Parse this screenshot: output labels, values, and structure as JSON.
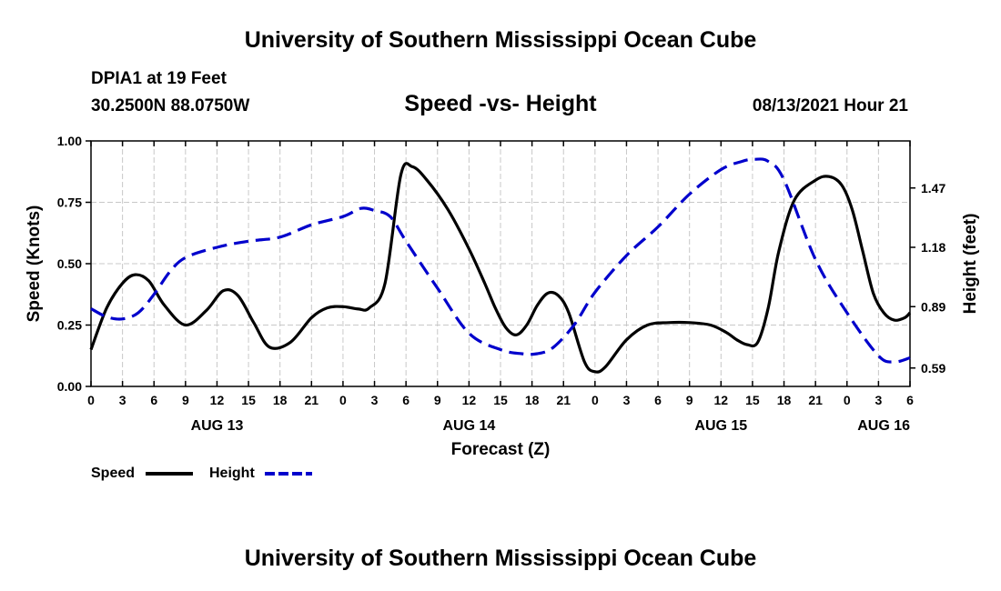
{
  "header": {
    "title": "University of Southern Mississippi Ocean Cube",
    "station": "DPIA1 at 19 Feet",
    "coords": "30.2500N  88.0750W",
    "chart_title": "Speed -vs- Height",
    "datetime": "08/13/2021 Hour 21"
  },
  "footer": {
    "title": "University of Southern Mississippi Ocean Cube"
  },
  "colors": {
    "speed": "#000000",
    "height": "#0000cc",
    "grid": "#c8c8c8"
  },
  "chart_data": {
    "type": "line",
    "title": "Speed -vs- Height",
    "xlabel": "Forecast (Z)",
    "ylabel": "Speed (Knots)",
    "y2label": "Height (feet)",
    "xlim": [
      0,
      78
    ],
    "ylim": [
      0,
      1.0
    ],
    "y2lim": [
      0.5,
      1.7
    ],
    "grid": true,
    "legend_position": "bottom-left",
    "x_ticks": [
      {
        "x": 0,
        "label": "0"
      },
      {
        "x": 3,
        "label": "3"
      },
      {
        "x": 6,
        "label": "6"
      },
      {
        "x": 9,
        "label": "9"
      },
      {
        "x": 12,
        "label": "12"
      },
      {
        "x": 15,
        "label": "15"
      },
      {
        "x": 18,
        "label": "18"
      },
      {
        "x": 21,
        "label": "21"
      },
      {
        "x": 24,
        "label": "0"
      },
      {
        "x": 27,
        "label": "3"
      },
      {
        "x": 30,
        "label": "6"
      },
      {
        "x": 33,
        "label": "9"
      },
      {
        "x": 36,
        "label": "12"
      },
      {
        "x": 39,
        "label": "15"
      },
      {
        "x": 42,
        "label": "18"
      },
      {
        "x": 45,
        "label": "21"
      },
      {
        "x": 48,
        "label": "0"
      },
      {
        "x": 51,
        "label": "3"
      },
      {
        "x": 54,
        "label": "6"
      },
      {
        "x": 57,
        "label": "9"
      },
      {
        "x": 60,
        "label": "12"
      },
      {
        "x": 63,
        "label": "15"
      },
      {
        "x": 66,
        "label": "18"
      },
      {
        "x": 69,
        "label": "21"
      },
      {
        "x": 72,
        "label": "0"
      },
      {
        "x": 75,
        "label": "3"
      },
      {
        "x": 78,
        "label": "6"
      }
    ],
    "day_labels": [
      {
        "x": 12,
        "label": "AUG 13"
      },
      {
        "x": 36,
        "label": "AUG 14"
      },
      {
        "x": 60,
        "label": "AUG 15"
      },
      {
        "x": 75.5,
        "label": "AUG 16"
      }
    ],
    "y_ticks": [
      {
        "v": 0.0,
        "label": "0.00"
      },
      {
        "v": 0.25,
        "label": "0.25"
      },
      {
        "v": 0.5,
        "label": "0.50"
      },
      {
        "v": 0.75,
        "label": "0.75"
      },
      {
        "v": 1.0,
        "label": "1.00"
      }
    ],
    "y2_ticks": [
      {
        "v": 0.59,
        "label": "0.59"
      },
      {
        "v": 0.89,
        "label": "0.89"
      },
      {
        "v": 1.18,
        "label": "1.18"
      },
      {
        "v": 1.47,
        "label": "1.47"
      }
    ],
    "series": [
      {
        "name": "Speed",
        "axis": "left",
        "color": "#000000",
        "dash": "solid",
        "x": [
          0,
          1.5,
          3,
          4.2,
          5.5,
          7,
          9,
          11,
          12.6,
          14,
          15.5,
          17,
          19,
          21,
          22.5,
          24,
          25.5,
          26.5,
          28,
          29.5,
          30.6,
          32,
          34,
          36,
          37.5,
          38.5,
          39.5,
          40.5,
          41.5,
          42.5,
          43.5,
          44.5,
          45.5,
          47,
          48,
          49,
          51,
          53,
          55,
          57,
          59,
          60.5,
          61.5,
          62.5,
          63.5,
          64.5,
          65.5,
          67,
          69,
          70.3,
          71.5,
          72.5,
          73.5,
          74.5,
          75.5,
          76.5,
          77.5,
          78
        ],
        "values": [
          0.15,
          0.32,
          0.42,
          0.455,
          0.43,
          0.33,
          0.25,
          0.31,
          0.39,
          0.37,
          0.26,
          0.16,
          0.18,
          0.28,
          0.32,
          0.325,
          0.315,
          0.32,
          0.42,
          0.86,
          0.895,
          0.84,
          0.72,
          0.56,
          0.42,
          0.32,
          0.24,
          0.21,
          0.25,
          0.33,
          0.38,
          0.37,
          0.3,
          0.1,
          0.06,
          0.08,
          0.19,
          0.25,
          0.26,
          0.26,
          0.25,
          0.22,
          0.19,
          0.17,
          0.18,
          0.32,
          0.55,
          0.76,
          0.84,
          0.855,
          0.82,
          0.72,
          0.55,
          0.38,
          0.3,
          0.27,
          0.28,
          0.3
        ]
      },
      {
        "name": "Height",
        "axis": "right",
        "color": "#0000cc",
        "dash": "dashed",
        "x": [
          0,
          1.5,
          3,
          4.5,
          6,
          7.5,
          9,
          12,
          15,
          18,
          21,
          24,
          25.7,
          27,
          28.5,
          30,
          33,
          36,
          39,
          41,
          42.5,
          44,
          46,
          48,
          51,
          54,
          57,
          60,
          62,
          63.2,
          64.5,
          66,
          69,
          72,
          75,
          76.5,
          78
        ],
        "values": [
          0.88,
          0.84,
          0.83,
          0.86,
          0.95,
          1.06,
          1.13,
          1.18,
          1.21,
          1.23,
          1.29,
          1.33,
          1.37,
          1.36,
          1.33,
          1.21,
          0.98,
          0.76,
          0.68,
          0.66,
          0.66,
          0.69,
          0.8,
          0.96,
          1.14,
          1.28,
          1.44,
          1.56,
          1.6,
          1.61,
          1.6,
          1.51,
          1.12,
          0.86,
          0.65,
          0.62,
          0.64
        ]
      }
    ]
  }
}
